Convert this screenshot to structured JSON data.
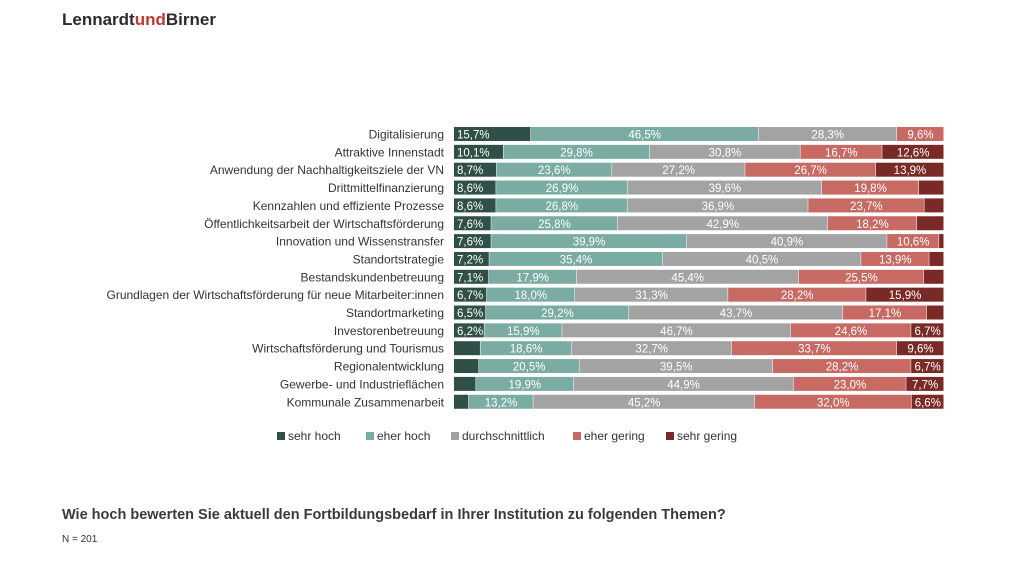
{
  "brand": {
    "part1": "Lennardt",
    "part2": "und",
    "part3": "Birner"
  },
  "footer": {
    "question": "Wie hoch bewerten Sie aktuell den Fortbildungsbedarf in Ihrer Institution zu folgenden Themen?",
    "sample": "N = 201"
  },
  "chart_data": {
    "type": "bar",
    "orientation": "horizontal",
    "stacked": "100%",
    "legend_position": "bottom",
    "grid": false,
    "series": [
      {
        "name": "sehr hoch",
        "color": "#2f4f47"
      },
      {
        "name": "eher hoch",
        "color": "#7aaca3"
      },
      {
        "name": "durchschnittlich",
        "color": "#a3a3a3"
      },
      {
        "name": "eher gering",
        "color": "#c76a63"
      },
      {
        "name": "sehr gering",
        "color": "#7a2a26"
      }
    ],
    "categories": [
      "Digitalisierung",
      "Attraktive Innenstadt",
      "Anwendung der Nachhaltigkeitsziele der VN",
      "Drittmittelfinanzierung",
      "Kennzahlen und effiziente Prozesse",
      "Öffentlichkeitsarbeit der Wirtschaftsförderung",
      "Innovation und Wissenstransfer",
      "Standortstrategie",
      "Bestandskundenbetreuung",
      "Grundlagen der Wirtschaftsförderung für neue Mitarbeiter:innen",
      "Standortmarketing",
      "Investorenbetreuung",
      "Wirtschaftsförderung und Tourismus",
      "Regionalentwicklung",
      "Gewerbe- und Industrieflächen",
      "Kommunale Zusammenarbeit"
    ],
    "values": [
      [
        15.7,
        46.5,
        28.3,
        9.6,
        0
      ],
      [
        10.1,
        29.8,
        30.8,
        16.7,
        12.6
      ],
      [
        8.7,
        23.6,
        27.2,
        26.7,
        13.9
      ],
      [
        8.6,
        26.9,
        39.6,
        19.8,
        5.1
      ],
      [
        8.6,
        26.8,
        36.9,
        23.7,
        4.0
      ],
      [
        7.6,
        25.8,
        42.9,
        18.2,
        5.5
      ],
      [
        7.6,
        39.9,
        40.9,
        10.6,
        1.0
      ],
      [
        7.2,
        35.4,
        40.5,
        13.9,
        3.0
      ],
      [
        7.1,
        17.9,
        45.4,
        25.5,
        4.1
      ],
      [
        6.7,
        18.0,
        31.3,
        28.2,
        15.9
      ],
      [
        6.5,
        29.2,
        43.7,
        17.1,
        3.5
      ],
      [
        6.2,
        15.9,
        46.7,
        24.6,
        6.7
      ],
      [
        5.4,
        18.6,
        32.7,
        33.7,
        9.6
      ],
      [
        5.1,
        20.5,
        39.5,
        28.2,
        6.7
      ],
      [
        4.5,
        19.9,
        44.9,
        23.0,
        7.7
      ],
      [
        3.0,
        13.2,
        45.2,
        32.0,
        6.6
      ]
    ],
    "labels": [
      [
        "15,7%",
        "46,5%",
        "28,3%",
        "9,6%",
        ""
      ],
      [
        "10,1%",
        "29,8%",
        "30,8%",
        "16,7%",
        "12,6%"
      ],
      [
        "8,7%",
        "23,6%",
        "27,2%",
        "26,7%",
        "13,9%"
      ],
      [
        "8,6%",
        "26,9%",
        "39,6%",
        "19,8%",
        ""
      ],
      [
        "8,6%",
        "26,8%",
        "36,9%",
        "23,7%",
        ""
      ],
      [
        "7,6%",
        "25,8%",
        "42,9%",
        "18,2%",
        ""
      ],
      [
        "7,6%",
        "39,9%",
        "40,9%",
        "10,6%",
        ""
      ],
      [
        "7,2%",
        "35,4%",
        "40,5%",
        "13,9%",
        ""
      ],
      [
        "7,1%",
        "17,9%",
        "45,4%",
        "25,5%",
        ""
      ],
      [
        "6,7%",
        "18,0%",
        "31,3%",
        "28,2%",
        "15,9%"
      ],
      [
        "6,5%",
        "29,2%",
        "43,7%",
        "17,1%",
        ""
      ],
      [
        "6,2%",
        "15,9%",
        "46,7%",
        "24,6%",
        "6,7%"
      ],
      [
        "",
        "18,6%",
        "32,7%",
        "33,7%",
        "9,6%"
      ],
      [
        "",
        "20,5%",
        "39,5%",
        "28,2%",
        "6,7%"
      ],
      [
        "",
        "19,9%",
        "44,9%",
        "23,0%",
        "7,7%"
      ],
      [
        "",
        "13,2%",
        "45,2%",
        "32,0%",
        "6,6%"
      ]
    ]
  }
}
